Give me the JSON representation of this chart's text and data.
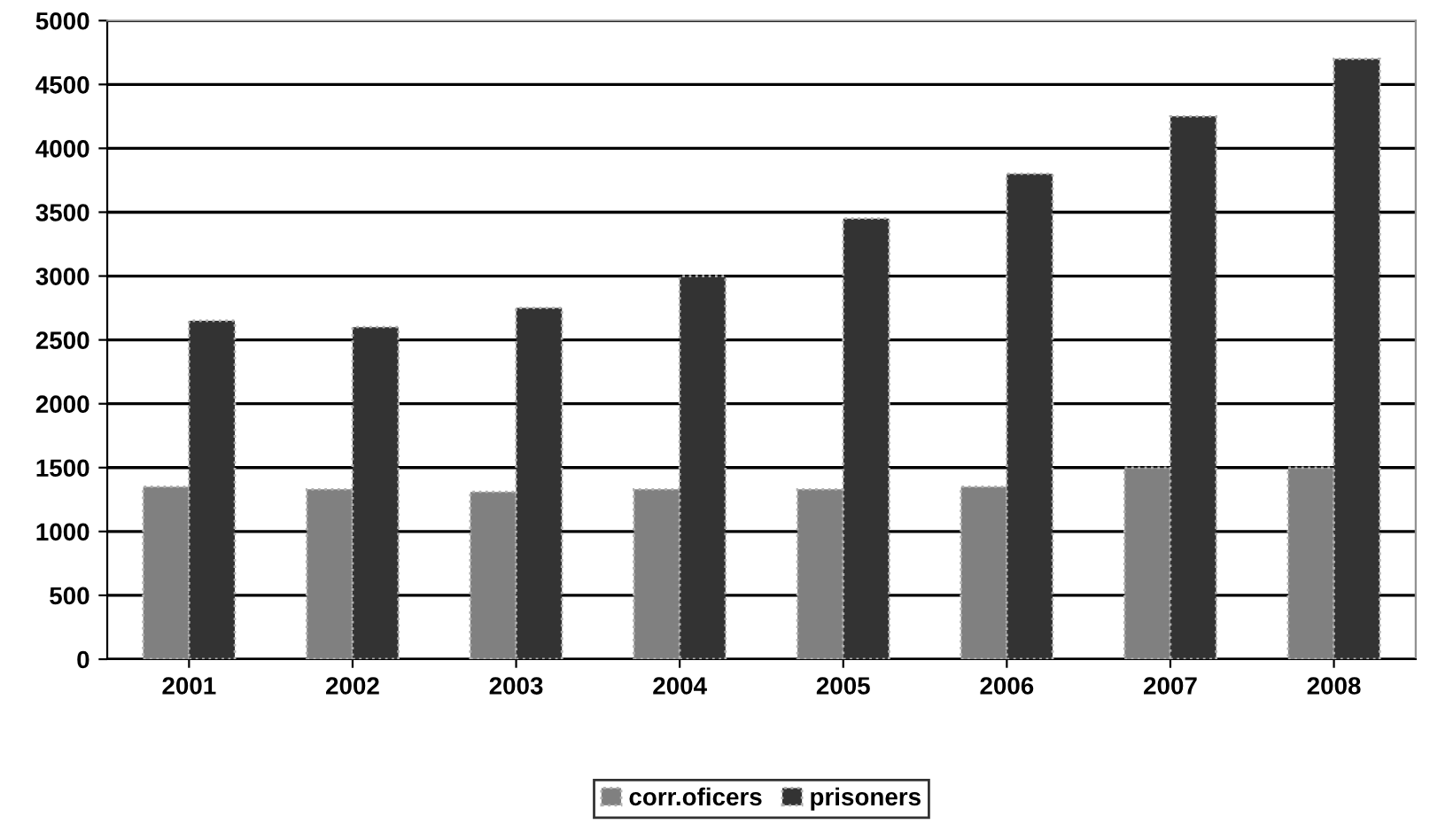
{
  "chart_data": {
    "type": "bar",
    "categories": [
      "2001",
      "2002",
      "2003",
      "2004",
      "2005",
      "2006",
      "2007",
      "2008"
    ],
    "series": [
      {
        "name": "corr.oficers",
        "color": "#808080",
        "values": [
          1350,
          1330,
          1310,
          1330,
          1330,
          1350,
          1500,
          1500
        ]
      },
      {
        "name": "prisoners",
        "color": "#333333",
        "values": [
          2650,
          2600,
          2750,
          3000,
          3450,
          3800,
          4250,
          4700
        ]
      }
    ],
    "ylim": [
      0,
      5000
    ],
    "yticks": [
      0,
      500,
      1000,
      1500,
      2000,
      2500,
      3000,
      3500,
      4000,
      4500,
      5000
    ],
    "grid": "y",
    "legend": "bottom"
  }
}
